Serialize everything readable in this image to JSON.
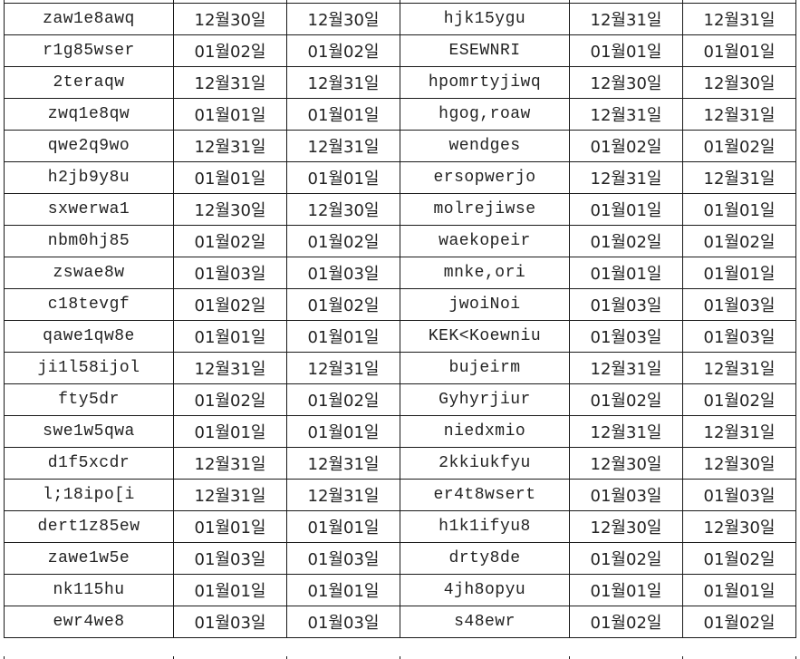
{
  "rows": [
    [
      "zaw1e8awq",
      "12월30일",
      "12월30일",
      "hjk15ygu",
      "12월31일",
      "12월31일"
    ],
    [
      "r1g85wser",
      "01월02일",
      "01월02일",
      "ESEWNRI",
      "01월01일",
      "01월01일"
    ],
    [
      "2teraqw",
      "12월31일",
      "12월31일",
      "hpomrtyjiwq",
      "12월30일",
      "12월30일"
    ],
    [
      "zwq1e8qw",
      "01월01일",
      "01월01일",
      "hgog,roaw",
      "12월31일",
      "12월31일"
    ],
    [
      "qwe2q9wo",
      "12월31일",
      "12월31일",
      "wendges",
      "01월02일",
      "01월02일"
    ],
    [
      "h2jb9y8u",
      "01월01일",
      "01월01일",
      "ersopwerjo",
      "12월31일",
      "12월31일"
    ],
    [
      "sxwerwa1",
      "12월30일",
      "12월30일",
      "molrejiwse",
      "01월01일",
      "01월01일"
    ],
    [
      "nbm0hj85",
      "01월02일",
      "01월02일",
      "waekopeir",
      "01월02일",
      "01월02일"
    ],
    [
      "zswae8w",
      "01월03일",
      "01월03일",
      "mnke,ori",
      "01월01일",
      "01월01일"
    ],
    [
      "c18tevgf",
      "01월02일",
      "01월02일",
      "jwoiNoi",
      "01월03일",
      "01월03일"
    ],
    [
      "qawe1qw8e",
      "01월01일",
      "01월01일",
      "KEK<Koewniu",
      "01월03일",
      "01월03일"
    ],
    [
      "ji1l58ijol",
      "12월31일",
      "12월31일",
      "bujeirm",
      "12월31일",
      "12월31일"
    ],
    [
      "fty5dr",
      "01월02일",
      "01월02일",
      "Gyhyrjiur",
      "01월02일",
      "01월02일"
    ],
    [
      "swe1w5qwa",
      "01월01일",
      "01월01일",
      "niedxmio",
      "12월31일",
      "12월31일"
    ],
    [
      "d1f5xcdr",
      "12월31일",
      "12월31일",
      "2kkiukfyu",
      "12월30일",
      "12월30일"
    ],
    [
      "l;18ipo[i",
      "12월31일",
      "12월31일",
      "er4t8wsert",
      "01월03일",
      "01월03일"
    ],
    [
      "dert1z85ew",
      "01월01일",
      "01월01일",
      "h1k1ifyu8",
      "12월30일",
      "12월30일"
    ],
    [
      "zawe1w5e",
      "01월03일",
      "01월03일",
      "drty8de",
      "01월02일",
      "01월02일"
    ],
    [
      "nk115hu",
      "01월01일",
      "01월01일",
      "4jh8opyu",
      "01월01일",
      "01월01일"
    ],
    [
      "ewr4we8",
      "01월03일",
      "01월03일",
      "s48ewr",
      "01월02일",
      "01월02일"
    ]
  ]
}
